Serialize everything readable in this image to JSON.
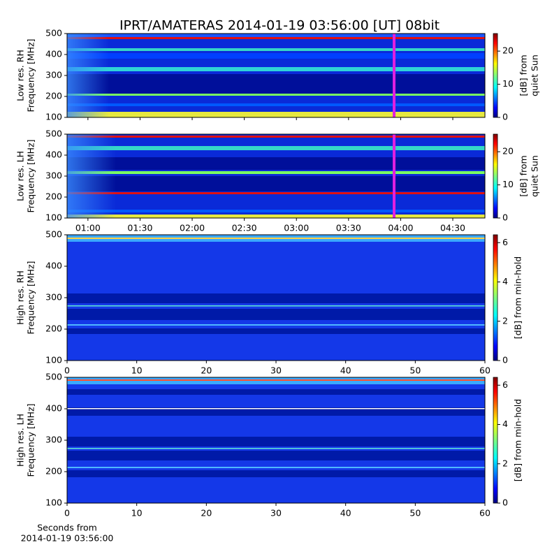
{
  "title": "IPRT/AMATERAS 2014-01-19 03:56:00 [UT]   08bit",
  "xlabel": [
    "Seconds from",
    "2014-01-19 03:56:00"
  ],
  "chart_data": [
    {
      "type": "heatmap",
      "ylabel": [
        "Low res. RH",
        "Frequency [MHz]"
      ],
      "ylim": [
        100,
        500
      ],
      "yticks": [
        100,
        200,
        300,
        400,
        500
      ],
      "xlim": [
        48,
        288.5
      ],
      "xticks": [
        60,
        90,
        120,
        150,
        180,
        210,
        240,
        270
      ],
      "colorbar_label": [
        "[dB] from",
        "quiet Sun"
      ],
      "clim": [
        0,
        25.3
      ],
      "cticks": [
        0,
        10,
        20
      ],
      "colormap": "jet"
    },
    {
      "type": "heatmap",
      "ylabel": [
        "Low res. LH",
        "Frequency [MHz]"
      ],
      "ylim": [
        100,
        500
      ],
      "yticks": [
        100,
        200,
        300,
        400,
        500
      ],
      "xlim": [
        48,
        288.5
      ],
      "xticks": [
        {
          "value": 60,
          "label": "01:00"
        },
        {
          "value": 90,
          "label": "01:30"
        },
        {
          "value": 120,
          "label": "02:00"
        },
        {
          "value": 150,
          "label": "02:30"
        },
        {
          "value": 180,
          "label": "03:00"
        },
        {
          "value": 210,
          "label": "03:30"
        },
        {
          "value": 240,
          "label": "04:00"
        },
        {
          "value": 270,
          "label": "04:30"
        }
      ],
      "colorbar_label": [
        "[dB] from",
        "quiet Sun"
      ],
      "clim": [
        0,
        25.3
      ],
      "cticks": [
        0,
        10,
        20
      ],
      "colormap": "jet"
    },
    {
      "type": "heatmap",
      "ylabel": [
        "High res. RH",
        "Frequency [MHz]"
      ],
      "ylim": [
        100,
        500
      ],
      "yticks": [
        100,
        200,
        300,
        400,
        500
      ],
      "xlim": [
        0,
        60
      ],
      "xticks": [
        0,
        10,
        20,
        30,
        40,
        50,
        60
      ],
      "colorbar_label": [
        "[dB] from min-hold"
      ],
      "clim": [
        0,
        6.4
      ],
      "cticks": [
        0,
        2,
        4,
        6
      ],
      "colormap": "jet"
    },
    {
      "type": "heatmap",
      "ylabel": [
        "High res. LH",
        "Frequency [MHz]"
      ],
      "ylim": [
        100,
        500
      ],
      "yticks": [
        100,
        200,
        300,
        400,
        500
      ],
      "xlim": [
        0,
        60
      ],
      "xticks": [
        0,
        10,
        20,
        30,
        40,
        50,
        60
      ],
      "colorbar_label": [
        "[dB] from min-hold"
      ],
      "clim": [
        0,
        6.4
      ],
      "cticks": [
        0,
        2,
        4,
        6
      ],
      "colormap": "jet"
    }
  ]
}
